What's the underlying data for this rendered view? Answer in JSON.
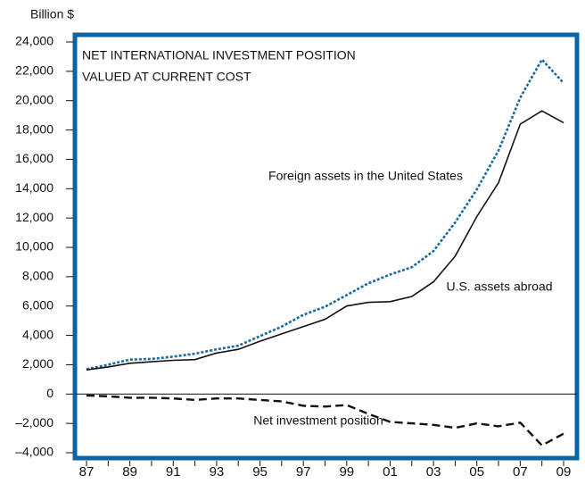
{
  "chart_data": {
    "type": "line",
    "title": "NET INTERNATIONAL INVESTMENT POSITION",
    "subtitle": "VALUED AT CURRENT COST",
    "y_label": "Billion $",
    "categories": [
      "87",
      null,
      "89",
      null,
      "91",
      null,
      "93",
      null,
      "95",
      null,
      "97",
      null,
      "99",
      null,
      "01",
      null,
      "03",
      null,
      "05",
      null,
      "07",
      null,
      "09"
    ],
    "series": [
      {
        "name": "Foreign assets in the United States",
        "color": "#1a6aa0",
        "style": "dotted",
        "values": [
          1700,
          2000,
          2350,
          2400,
          2550,
          2750,
          3050,
          3300,
          3950,
          4600,
          5400,
          5950,
          6750,
          7550,
          8150,
          8650,
          9750,
          11700,
          13950,
          16600,
          20200,
          22800,
          21200
        ]
      },
      {
        "name": "U.S. assets abroad",
        "color": "#111111",
        "style": "solid",
        "values": [
          1650,
          1850,
          2100,
          2200,
          2300,
          2350,
          2800,
          3050,
          3600,
          4100,
          4600,
          5100,
          6000,
          6250,
          6300,
          6650,
          7650,
          9400,
          12100,
          14400,
          18400,
          19300,
          18500
        ]
      },
      {
        "name": "Net investment position",
        "color": "#111111",
        "style": "dashed",
        "values": [
          -100,
          -150,
          -250,
          -250,
          -300,
          -400,
          -300,
          -300,
          -400,
          -500,
          -800,
          -850,
          -750,
          -1350,
          -1900,
          -2000,
          -2100,
          -2300,
          -2000,
          -2200,
          -1950,
          -3500,
          -2700
        ]
      }
    ],
    "ylim": [
      -4000,
      24000
    ],
    "yticks": [
      {
        "value": -4000,
        "label": "–4,000"
      },
      {
        "value": -2000,
        "label": "–2,000"
      },
      0,
      {
        "value": 2000,
        "label": "2,000"
      },
      {
        "value": 4000,
        "label": "4,000"
      },
      {
        "value": 6000,
        "label": "6,000"
      },
      {
        "value": 8000,
        "label": "8,000"
      },
      {
        "value": 10000,
        "label": "10,000"
      },
      {
        "value": 12000,
        "label": "12,000"
      },
      {
        "value": 14000,
        "label": "14,000"
      },
      {
        "value": 16000,
        "label": "16,000"
      },
      {
        "value": 18000,
        "label": "18,000"
      },
      {
        "value": 20000,
        "label": "20,000"
      },
      {
        "value": 22000,
        "label": "22,000"
      },
      {
        "value": 24000,
        "label": "24,000"
      }
    ],
    "frame_color": "#0b63a3",
    "zero_line": true
  }
}
